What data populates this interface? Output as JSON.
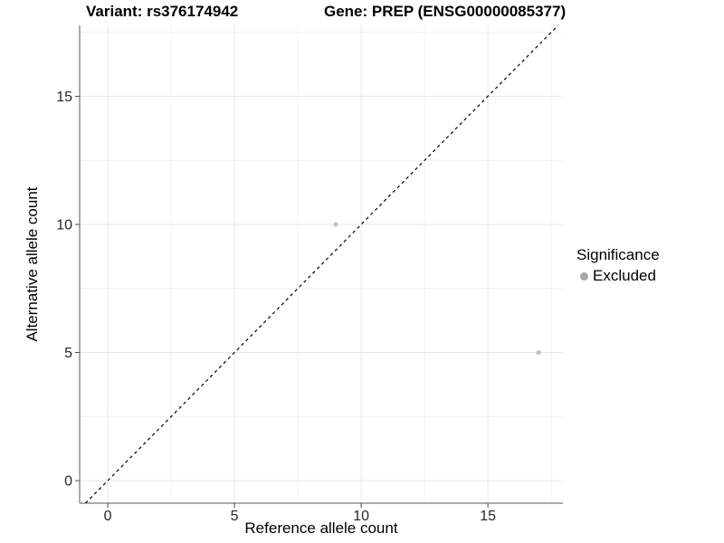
{
  "chart_data": {
    "type": "scatter",
    "titles": {
      "left": "Variant: rs376174942",
      "right": "Gene: PREP (ENSG00000085377)"
    },
    "xlabel": "Reference allele count",
    "ylabel": "Alternative allele count",
    "xlim": [
      -1.11,
      17.96
    ],
    "ylim": [
      -0.88,
      17.77
    ],
    "x_ticks": [
      0,
      5,
      10,
      15
    ],
    "y_ticks": [
      0,
      5,
      10,
      15
    ],
    "minor_ticks_x": [
      2.5,
      7.5,
      12.5,
      17.5
    ],
    "minor_ticks_y": [
      2.5,
      7.5,
      12.5,
      17.5
    ],
    "grid": "major+minor",
    "series": [
      {
        "name": "Excluded",
        "color": "#c2c2c2",
        "points": [
          {
            "x": 9,
            "y": 10
          },
          {
            "x": 17,
            "y": 5
          }
        ]
      }
    ],
    "reference_line": {
      "type": "identity",
      "style": "dashed",
      "color": "#000000"
    },
    "legend": {
      "title": "Significance",
      "position": "right",
      "items": [
        {
          "label": "Excluded",
          "marker": "circle",
          "color": "#a8a8a8"
        }
      ]
    },
    "colors": {
      "grid_major": "#e7e7e7",
      "grid_minor": "#f2f2f2",
      "axis_line": "#595959",
      "tick_mark": "#4d4d4d",
      "tick_text": "#262626"
    }
  }
}
